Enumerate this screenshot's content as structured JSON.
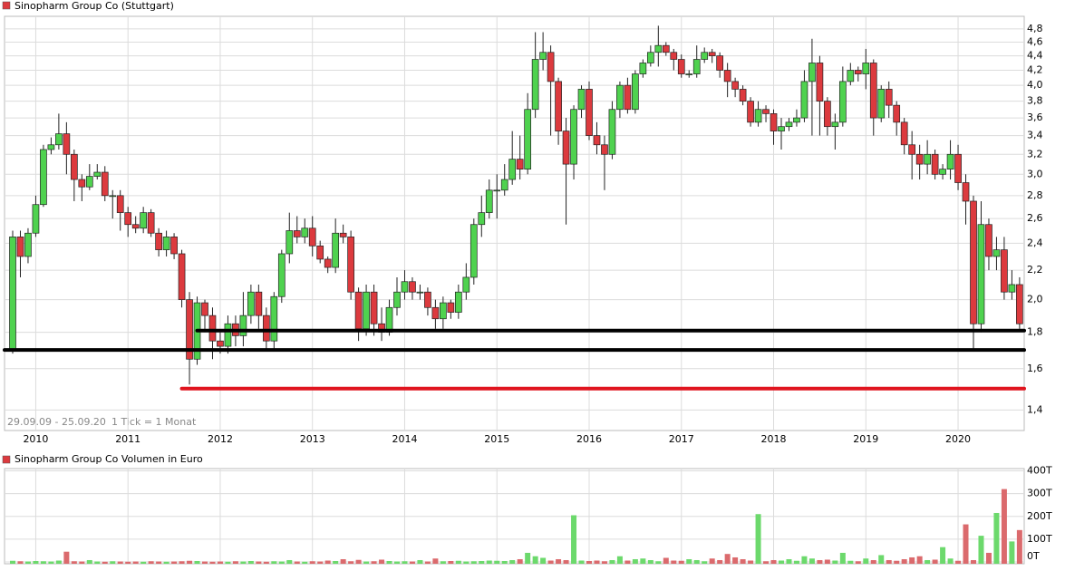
{
  "chart_data": [
    {
      "type": "candlestick",
      "title": "Sinopharm Group Co (Stuttgart)",
      "date_range": "29.09.09 - 25.09.20",
      "tick_note": "1 Tick = 1 Monat",
      "log_scale": true,
      "grid": true,
      "up_color": "#4fd24f",
      "down_color": "#dc3a3e",
      "categories": [
        null,
        null,
        null,
        "2010",
        null,
        null,
        null,
        null,
        null,
        null,
        null,
        null,
        null,
        null,
        null,
        "2011",
        null,
        null,
        null,
        null,
        null,
        null,
        null,
        null,
        null,
        null,
        null,
        "2012",
        null,
        null,
        null,
        null,
        null,
        null,
        null,
        null,
        null,
        null,
        null,
        "2013",
        null,
        null,
        null,
        null,
        null,
        null,
        null,
        null,
        null,
        null,
        null,
        "2014",
        null,
        null,
        null,
        null,
        null,
        null,
        null,
        null,
        null,
        null,
        null,
        "2015",
        null,
        null,
        null,
        null,
        null,
        null,
        null,
        null,
        null,
        null,
        null,
        "2016",
        null,
        null,
        null,
        null,
        null,
        null,
        null,
        null,
        null,
        null,
        null,
        "2017",
        null,
        null,
        null,
        null,
        null,
        null,
        null,
        null,
        null,
        null,
        null,
        "2018",
        null,
        null,
        null,
        null,
        null,
        null,
        null,
        null,
        null,
        null,
        null,
        "2019",
        null,
        null,
        null,
        null,
        null,
        null,
        null,
        null,
        null,
        null,
        null,
        "2020",
        null,
        null,
        null,
        null,
        null,
        null,
        null,
        null
      ],
      "open": [
        1.7,
        2.45,
        2.3,
        2.48,
        2.72,
        3.25,
        3.3,
        3.42,
        3.2,
        2.95,
        2.88,
        2.98,
        3.02,
        2.8,
        2.8,
        2.65,
        2.55,
        2.52,
        2.65,
        2.48,
        2.35,
        2.45,
        2.32,
        2.0,
        1.65,
        1.98,
        1.9,
        1.75,
        1.72,
        1.85,
        1.78,
        1.9,
        2.05,
        1.9,
        1.75,
        2.02,
        2.32,
        2.5,
        2.45,
        2.52,
        2.38,
        2.28,
        2.22,
        2.48,
        2.45,
        2.05,
        1.82,
        2.05,
        1.85,
        1.8,
        1.95,
        2.05,
        2.12,
        2.05,
        2.05,
        1.95,
        1.88,
        1.98,
        1.92,
        2.05,
        2.15,
        2.55,
        2.65,
        2.85,
        2.85,
        2.95,
        3.15,
        3.05,
        3.7,
        4.35,
        4.45,
        4.05,
        3.45,
        3.1,
        3.7,
        3.95,
        3.4,
        3.3,
        3.2,
        3.7,
        4.0,
        3.7,
        4.15,
        4.3,
        4.45,
        4.55,
        4.45,
        4.35,
        4.15,
        4.15,
        4.35,
        4.45,
        4.4,
        4.2,
        4.05,
        3.95,
        3.8,
        3.55,
        3.7,
        3.65,
        3.45,
        3.5,
        3.55,
        3.6,
        4.05,
        4.3,
        3.8,
        3.5,
        3.55,
        4.05,
        4.2,
        4.15,
        4.3,
        3.6,
        3.95,
        3.75,
        3.55,
        3.3,
        3.2,
        3.1,
        3.2,
        3.0,
        3.05,
        3.2,
        2.92,
        2.75,
        1.85,
        2.55,
        2.3,
        2.35,
        2.05,
        2.1
      ],
      "high": [
        2.5,
        2.5,
        2.52,
        2.8,
        3.3,
        3.38,
        3.65,
        3.55,
        3.25,
        3.0,
        3.1,
        3.1,
        3.08,
        2.85,
        2.85,
        2.7,
        2.62,
        2.7,
        2.68,
        2.52,
        2.5,
        2.48,
        2.35,
        2.05,
        2.02,
        2.0,
        1.95,
        1.8,
        1.9,
        1.9,
        2.05,
        2.1,
        2.1,
        1.95,
        2.05,
        2.35,
        2.65,
        2.62,
        2.6,
        2.62,
        2.42,
        2.3,
        2.6,
        2.55,
        2.5,
        2.08,
        2.1,
        2.1,
        1.95,
        2.0,
        2.15,
        2.2,
        2.15,
        2.1,
        2.08,
        2.0,
        2.02,
        2.0,
        2.1,
        2.25,
        2.6,
        2.8,
        2.95,
        3.0,
        3.1,
        3.45,
        3.4,
        3.9,
        4.75,
        4.75,
        4.55,
        4.1,
        3.6,
        3.75,
        4.0,
        4.05,
        3.55,
        3.4,
        3.8,
        4.05,
        4.1,
        4.2,
        4.35,
        4.55,
        4.85,
        4.6,
        4.5,
        4.42,
        4.2,
        4.55,
        4.52,
        4.5,
        4.45,
        4.3,
        4.1,
        4.0,
        3.85,
        3.8,
        3.75,
        3.7,
        3.6,
        3.6,
        3.7,
        4.2,
        4.65,
        4.4,
        3.85,
        3.65,
        4.25,
        4.3,
        4.25,
        4.5,
        4.35,
        4.0,
        4.05,
        3.8,
        3.6,
        3.45,
        3.3,
        3.35,
        3.25,
        3.1,
        3.35,
        3.3,
        3.0,
        2.8,
        2.75,
        2.6,
        2.45,
        2.45,
        2.2,
        2.15
      ],
      "low": [
        1.68,
        2.15,
        2.25,
        2.45,
        2.7,
        3.2,
        3.25,
        3.0,
        2.75,
        2.75,
        2.85,
        2.95,
        2.75,
        2.6,
        2.5,
        2.45,
        2.48,
        2.48,
        2.45,
        2.3,
        2.3,
        2.28,
        1.95,
        1.52,
        1.62,
        1.8,
        1.65,
        1.68,
        1.68,
        1.72,
        1.72,
        1.85,
        1.82,
        1.7,
        1.7,
        1.98,
        2.25,
        2.4,
        2.4,
        2.3,
        2.25,
        2.18,
        2.18,
        2.4,
        2.0,
        1.75,
        1.78,
        1.78,
        1.75,
        1.78,
        1.9,
        2.0,
        2.0,
        2.0,
        1.9,
        1.82,
        1.82,
        1.88,
        1.88,
        2.0,
        2.1,
        2.45,
        2.6,
        2.6,
        2.8,
        2.9,
        2.95,
        3.0,
        3.6,
        4.2,
        3.4,
        3.3,
        2.55,
        2.95,
        3.6,
        3.35,
        3.2,
        2.85,
        3.15,
        3.6,
        3.65,
        3.65,
        4.1,
        4.25,
        4.25,
        4.4,
        4.2,
        4.1,
        4.1,
        4.1,
        4.3,
        4.3,
        4.1,
        3.85,
        3.85,
        3.75,
        3.5,
        3.5,
        3.55,
        3.3,
        3.25,
        3.45,
        3.5,
        3.55,
        3.4,
        3.4,
        3.4,
        3.25,
        3.5,
        4.0,
        4.05,
        3.95,
        3.4,
        3.55,
        3.6,
        3.4,
        3.2,
        2.95,
        2.95,
        3.0,
        2.95,
        2.95,
        2.95,
        2.85,
        2.55,
        1.7,
        1.8,
        2.2,
        2.2,
        2.0,
        2.0,
        1.82
      ],
      "close": [
        2.45,
        2.3,
        2.48,
        2.72,
        3.25,
        3.3,
        3.42,
        3.2,
        2.95,
        2.88,
        2.98,
        3.02,
        2.8,
        2.8,
        2.65,
        2.55,
        2.52,
        2.65,
        2.48,
        2.35,
        2.45,
        2.32,
        2.0,
        1.65,
        1.98,
        1.9,
        1.75,
        1.72,
        1.85,
        1.78,
        1.9,
        2.05,
        1.9,
        1.75,
        2.02,
        2.32,
        2.5,
        2.45,
        2.52,
        2.38,
        2.28,
        2.22,
        2.48,
        2.45,
        2.05,
        1.82,
        2.05,
        1.85,
        1.8,
        1.95,
        2.05,
        2.12,
        2.05,
        2.05,
        1.95,
        1.88,
        1.98,
        1.92,
        2.05,
        2.15,
        2.55,
        2.65,
        2.85,
        2.85,
        2.95,
        3.15,
        3.05,
        3.7,
        4.35,
        4.45,
        4.05,
        3.45,
        3.1,
        3.7,
        3.95,
        3.4,
        3.3,
        3.2,
        3.7,
        4.0,
        3.7,
        4.15,
        4.3,
        4.45,
        4.55,
        4.45,
        4.35,
        4.15,
        4.15,
        4.35,
        4.45,
        4.4,
        4.2,
        4.05,
        3.95,
        3.8,
        3.55,
        3.7,
        3.65,
        3.45,
        3.5,
        3.55,
        3.6,
        4.05,
        4.3,
        3.8,
        3.5,
        3.55,
        4.05,
        4.2,
        4.15,
        4.3,
        3.6,
        3.95,
        3.75,
        3.55,
        3.3,
        3.2,
        3.1,
        3.2,
        3.0,
        3.05,
        3.2,
        2.92,
        2.75,
        1.85,
        2.55,
        2.3,
        2.35,
        2.05,
        2.1,
        1.85
      ],
      "lines": [
        {
          "value": 1.81,
          "start": 24,
          "color": "#000000"
        },
        {
          "value": 1.7,
          "start": 0,
          "color": "#000000"
        },
        {
          "value": 1.5,
          "start": 22,
          "color": "#e0141e"
        }
      ],
      "ylim": [
        1.31,
        5.0
      ],
      "yticks": [
        {
          "value": 1.4,
          "label": "1,4"
        },
        {
          "value": 1.6,
          "label": "1,6"
        },
        {
          "value": 1.8,
          "label": "1,8"
        },
        {
          "value": 2.0,
          "label": "2,0"
        },
        {
          "value": 2.2,
          "label": "2,2"
        },
        {
          "value": 2.4,
          "label": "2,4"
        },
        {
          "value": 2.6,
          "label": "2,6"
        },
        {
          "value": 2.8,
          "label": "2,8"
        },
        {
          "value": 3.0,
          "label": "3,0"
        },
        {
          "value": 3.2,
          "label": "3,2"
        },
        {
          "value": 3.4,
          "label": "3,4"
        },
        {
          "value": 3.6,
          "label": "3,6"
        },
        {
          "value": 3.8,
          "label": "3,8"
        },
        {
          "value": 4.0,
          "label": "4,0"
        },
        {
          "value": 4.2,
          "label": "4,2"
        },
        {
          "value": 4.4,
          "label": "4,4"
        },
        {
          "value": 4.6,
          "label": "4,6"
        },
        {
          "value": 4.8,
          "label": "4,8"
        }
      ]
    },
    {
      "type": "bar",
      "title": "Sinopharm Group Co Volumen in Euro",
      "up_color": "#6cd96c",
      "down_color": "#db6a6d",
      "grid": true,
      "values": [
        5000,
        3000,
        2000,
        4000,
        3000,
        2000,
        6000,
        45000,
        3000,
        2000,
        8000,
        2000,
        1000,
        3000,
        2000,
        1000,
        2000,
        1000,
        3000,
        2000,
        1000,
        2000,
        3000,
        5000,
        4000,
        2000,
        1000,
        2000,
        1000,
        3000,
        2000,
        4000,
        2000,
        1000,
        3000,
        2000,
        8000,
        2000,
        1000,
        3000,
        2000,
        6000,
        4000,
        12000,
        3000,
        9000,
        2000,
        3000,
        10000,
        4000,
        2000,
        3000,
        2000,
        8000,
        2000,
        15000,
        3000,
        4000,
        5000,
        2000,
        3000,
        4000,
        6000,
        5000,
        4000,
        8000,
        12000,
        40000,
        25000,
        18000,
        6000,
        12000,
        8000,
        205000,
        6000,
        4000,
        6000,
        3000,
        8000,
        25000,
        6000,
        12000,
        15000,
        8000,
        3000,
        18000,
        6000,
        5000,
        12000,
        8000,
        3000,
        15000,
        8000,
        35000,
        20000,
        12000,
        6000,
        210000,
        3000,
        8000,
        6000,
        12000,
        5000,
        25000,
        15000,
        8000,
        10000,
        6000,
        40000,
        5000,
        3000,
        15000,
        8000,
        30000,
        8000,
        5000,
        12000,
        20000,
        25000,
        8000,
        10000,
        65000,
        15000,
        5000,
        165000,
        8000,
        115000,
        40000,
        215000,
        320000,
        90000,
        140000
      ],
      "ylim": [
        0,
        410000
      ],
      "yticks": [
        {
          "value": 0,
          "label": "0T"
        },
        {
          "value": 100000,
          "label": "100T"
        },
        {
          "value": 200000,
          "label": "200T"
        },
        {
          "value": 300000,
          "label": "300T"
        },
        {
          "value": 400000,
          "label": "400T"
        }
      ]
    }
  ]
}
